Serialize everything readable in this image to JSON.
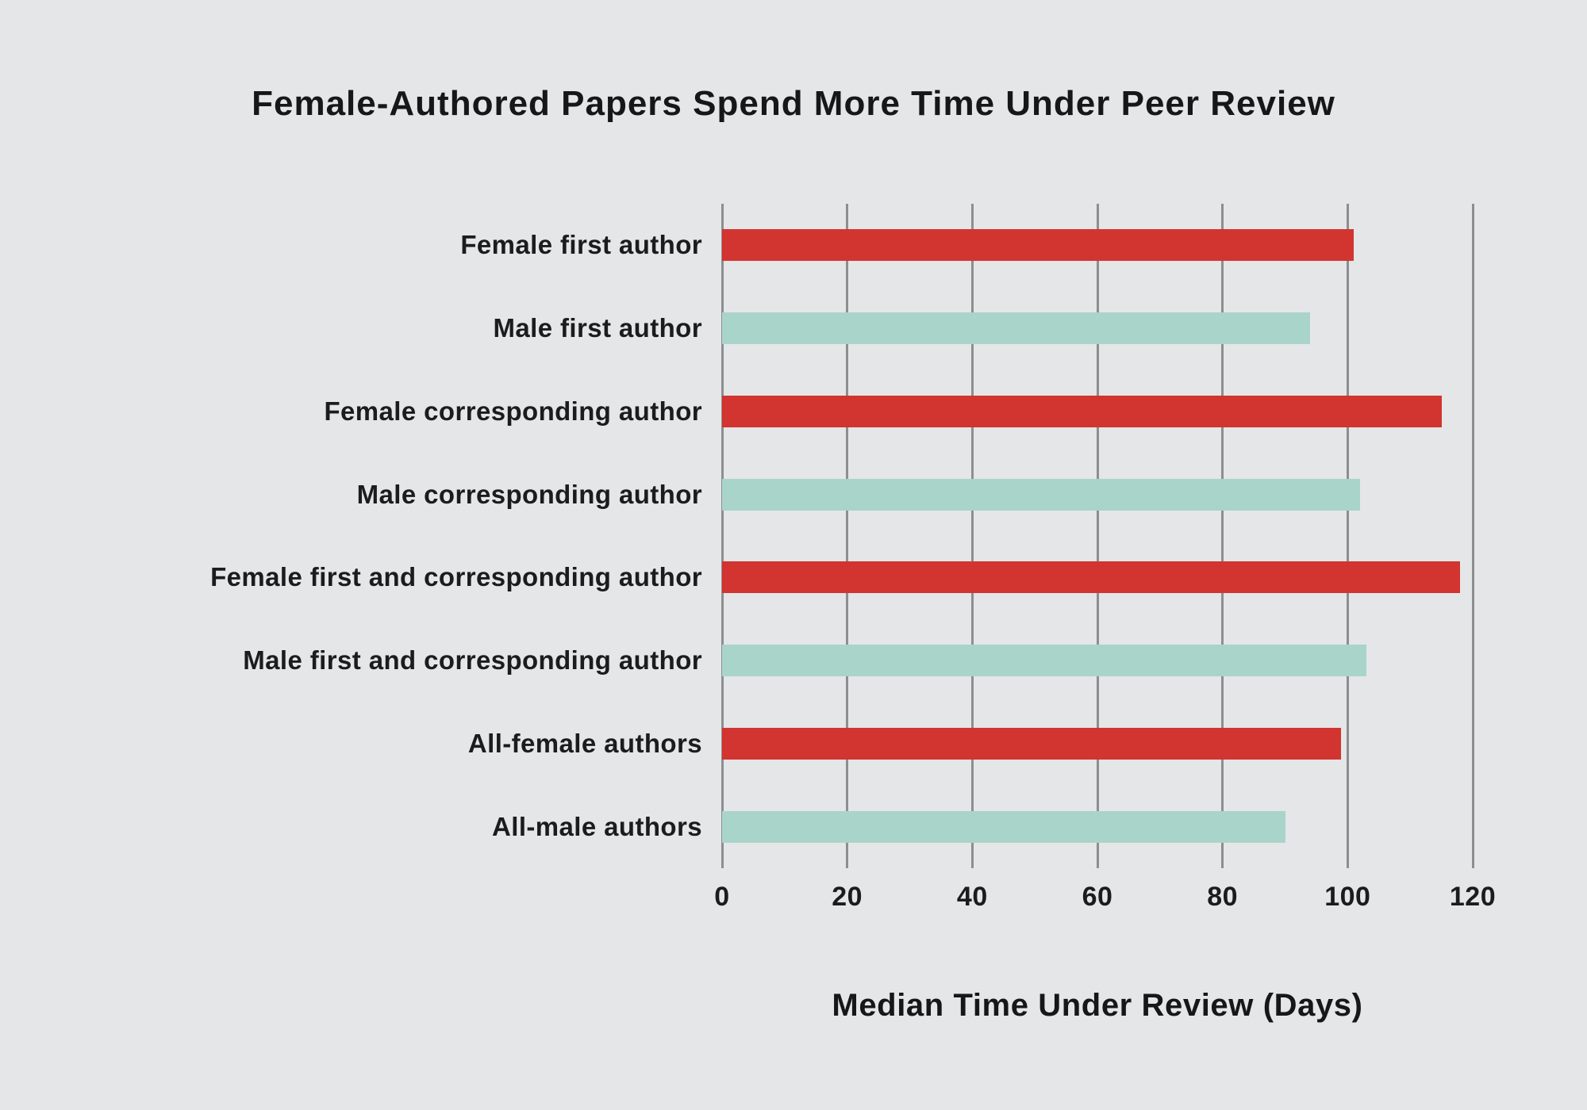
{
  "title": "Female-Authored Papers Spend More Time Under Peer Review",
  "colors": {
    "background": "#e5e6e7",
    "female_bar": "#d23430",
    "male_bar": "#a9d4c9",
    "gridline": "#8c8e90",
    "text": "#1b1c1d"
  },
  "chart_data": {
    "type": "bar",
    "orientation": "horizontal",
    "title": "Female-Authored Papers Spend More Time Under Peer Review",
    "categories": [
      "Female first author",
      "Male first author",
      "Female corresponding author",
      "Male corresponding author",
      "Female first and corresponding author",
      "Male first and corresponding author",
      "All-female authors",
      "All-male authors"
    ],
    "values": [
      101,
      94,
      115,
      102,
      118,
      103,
      99,
      90
    ],
    "groups": [
      "female",
      "male",
      "female",
      "male",
      "female",
      "male",
      "female",
      "male"
    ],
    "xlabel": "Median Time Under Review (Days)",
    "ylabel": "",
    "xlim": [
      0,
      120
    ],
    "xticks": [
      0,
      20,
      40,
      60,
      80,
      100,
      120
    ],
    "grid": true,
    "legend": false
  }
}
